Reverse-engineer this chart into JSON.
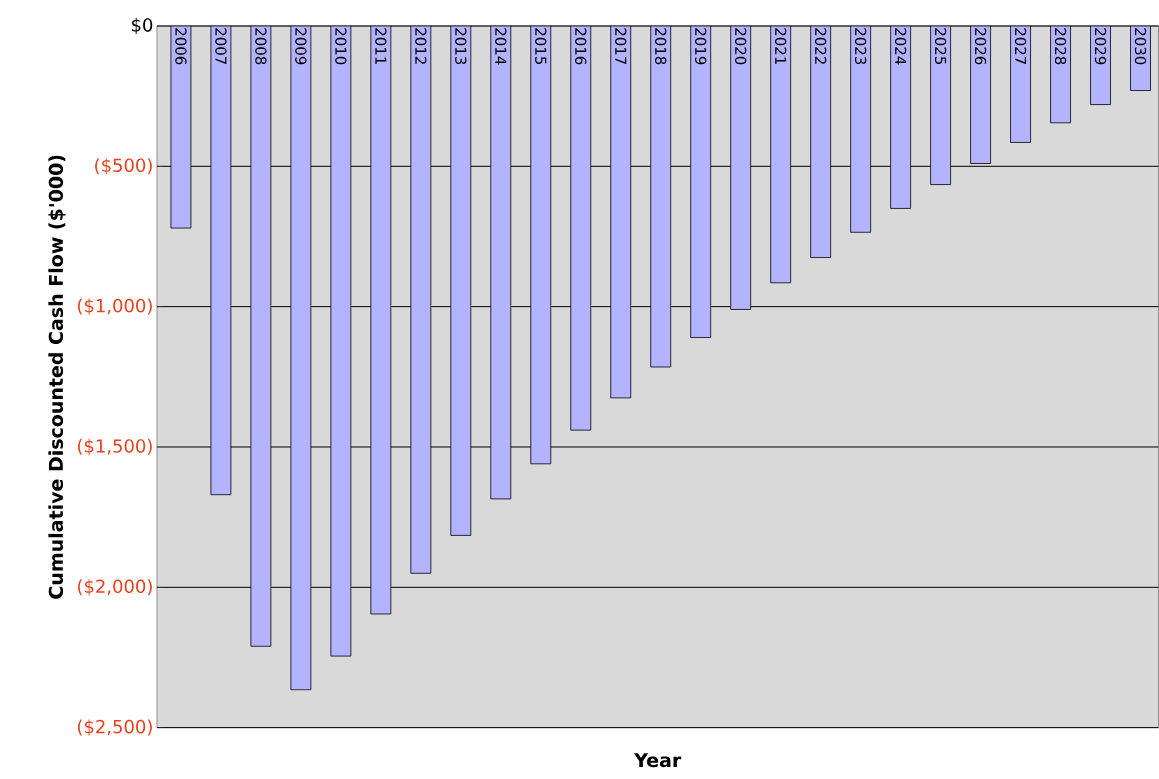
{
  "chart_data": {
    "type": "bar",
    "xlabel": "Year",
    "ylabel": "Cumulative Discounted Cash Flow ($'000)",
    "categories": [
      "2006",
      "2007",
      "2008",
      "2009",
      "2010",
      "2011",
      "2012",
      "2013",
      "2014",
      "2015",
      "2016",
      "2017",
      "2018",
      "2019",
      "2020",
      "2021",
      "2022",
      "2023",
      "2024",
      "2025",
      "2026",
      "2027",
      "2028",
      "2029",
      "2030"
    ],
    "values": [
      -720,
      -1670,
      -2210,
      -2365,
      -2245,
      -2095,
      -1950,
      -1815,
      -1685,
      -1560,
      -1440,
      -1325,
      -1215,
      -1110,
      -1010,
      -915,
      -825,
      -735,
      -650,
      -565,
      -490,
      -415,
      -345,
      -280,
      -230
    ],
    "color": "#b3b3ff",
    "ylim": [
      -2500,
      0
    ],
    "yticks": [
      {
        "value": -2500,
        "label": "($2,500)"
      },
      {
        "value": -2000,
        "label": "($2,000)"
      },
      {
        "value": -1500,
        "label": "($1,500)"
      },
      {
        "value": -1000,
        "label": "($1,000)"
      },
      {
        "value": -500,
        "label": "($500)"
      },
      {
        "value": 0,
        "label": "$0"
      }
    ],
    "grid": "y"
  }
}
